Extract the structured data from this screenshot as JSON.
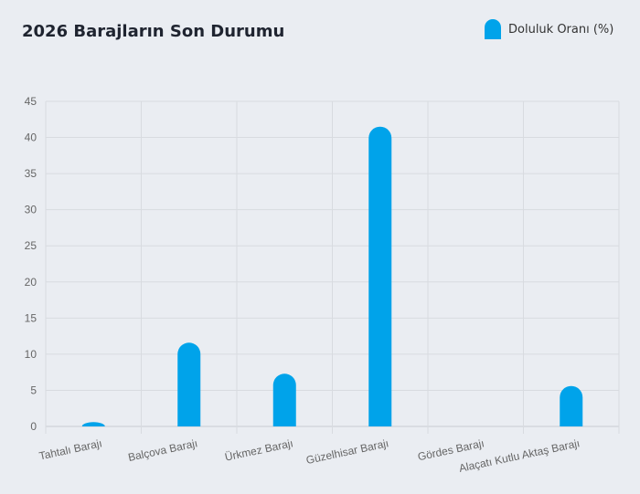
{
  "chart_data": {
    "type": "bar",
    "title": "2026 Barajların Son Durumu",
    "categories": [
      "Tahtalı Barajı",
      "Balçova Barajı",
      "Ürkmez Barajı",
      "Güzelhisar Barajı",
      "Gördes Barajı",
      "Alaçatı Kutlu Aktaş Barajı"
    ],
    "series": [
      {
        "name": "Doluluk Oranı (%)",
        "values": [
          0.6,
          11.6,
          7.3,
          41.5,
          0,
          5.6
        ]
      }
    ],
    "ylim": [
      0,
      45
    ],
    "yticks": [
      "0",
      "5",
      "10",
      "15",
      "20",
      "25",
      "30",
      "35",
      "40",
      "45"
    ],
    "xlabel": "",
    "ylabel": "",
    "grid": true,
    "legend": "top-right",
    "color": "#00a3ea"
  }
}
